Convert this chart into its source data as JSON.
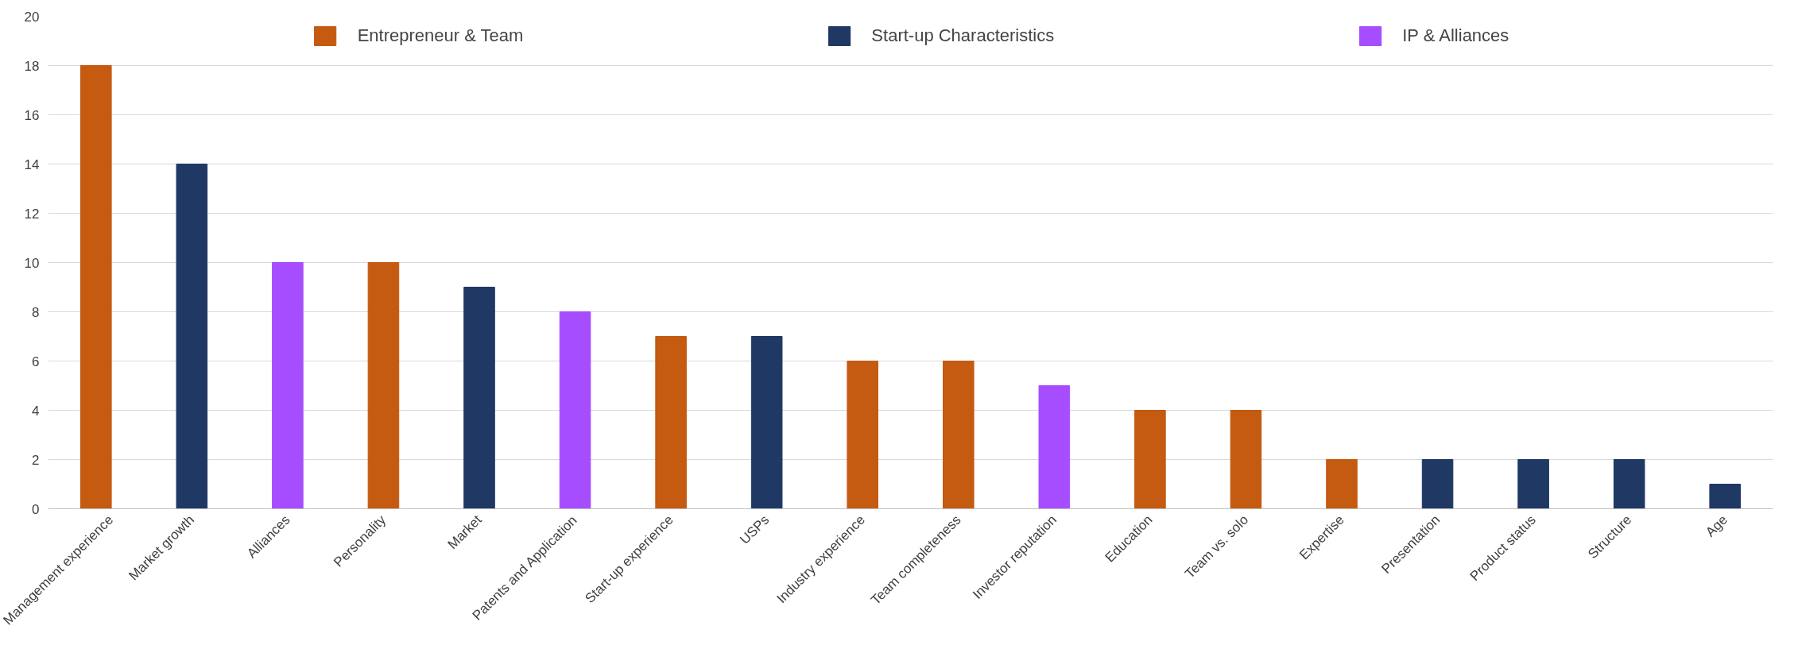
{
  "chart_data": {
    "type": "bar",
    "categories": [
      "Management experience",
      "Market growth",
      "Alliances",
      "Personality",
      "Market",
      "Patents and Application",
      "Start-up experience",
      "USPs",
      "Industry experience",
      "Team completeness",
      "Investor reputation",
      "Education",
      "Team vs. solo",
      "Expertise",
      "Presentation",
      "Product status",
      "Structure",
      "Age"
    ],
    "series": [
      {
        "name": "Entrepreneur & Team",
        "color": "#c55a11",
        "values": [
          18,
          null,
          null,
          10,
          null,
          null,
          7,
          null,
          6,
          6,
          null,
          4,
          4,
          2,
          null,
          null,
          null,
          null
        ]
      },
      {
        "name": "Start-up Characteristics",
        "color": "#203864",
        "values": [
          null,
          14,
          null,
          null,
          9,
          null,
          null,
          7,
          null,
          null,
          null,
          null,
          null,
          null,
          2,
          2,
          2,
          1
        ]
      },
      {
        "name": "IP & Alliances",
        "color": "#a64dff",
        "values": [
          null,
          null,
          10,
          null,
          null,
          8,
          null,
          null,
          null,
          null,
          5,
          null,
          null,
          null,
          null,
          null,
          null,
          null
        ]
      }
    ],
    "ylim": [
      0,
      20
    ],
    "yticks": [
      0,
      2,
      4,
      6,
      8,
      10,
      12,
      14,
      16,
      18,
      20
    ],
    "grid": "y",
    "legend": "top"
  }
}
